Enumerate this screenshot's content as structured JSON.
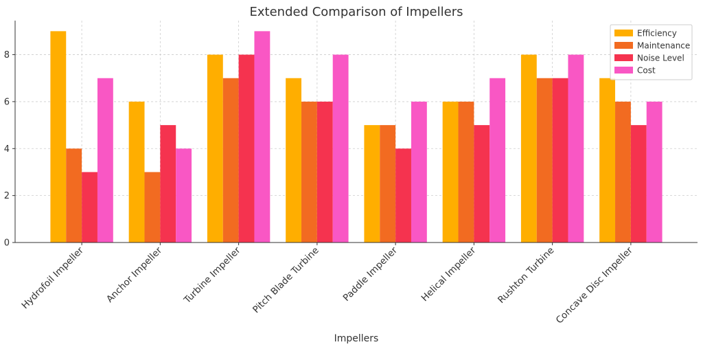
{
  "chart_data": {
    "type": "bar",
    "title": "Extended Comparison of Impellers",
    "xlabel": "Impellers",
    "ylabel": "",
    "ylim": [
      0,
      9.45
    ],
    "yticks": [
      0,
      2,
      4,
      6,
      8
    ],
    "grid": true,
    "legend_position": "top-right",
    "categories": [
      "Hydrofoil Impeller",
      "Anchor Impeller",
      "Turbine Impeller",
      "Pitch Blade Turbine",
      "Paddle Impeller",
      "Helical Impeller",
      "Rushton Turbine",
      "Concave Disc Impeller"
    ],
    "series": [
      {
        "name": "Efficiency",
        "color": "#FFAE00",
        "values": [
          9,
          6,
          8,
          7,
          5,
          6,
          8,
          7
        ]
      },
      {
        "name": "Maintenance",
        "color": "#F26B21",
        "values": [
          4,
          3,
          7,
          6,
          5,
          6,
          7,
          6
        ]
      },
      {
        "name": "Noise Level",
        "color": "#F5334F",
        "values": [
          3,
          5,
          8,
          6,
          4,
          5,
          7,
          5
        ]
      },
      {
        "name": "Cost",
        "color": "#F957C4",
        "values": [
          7,
          4,
          9,
          8,
          6,
          7,
          8,
          6
        ]
      }
    ]
  }
}
